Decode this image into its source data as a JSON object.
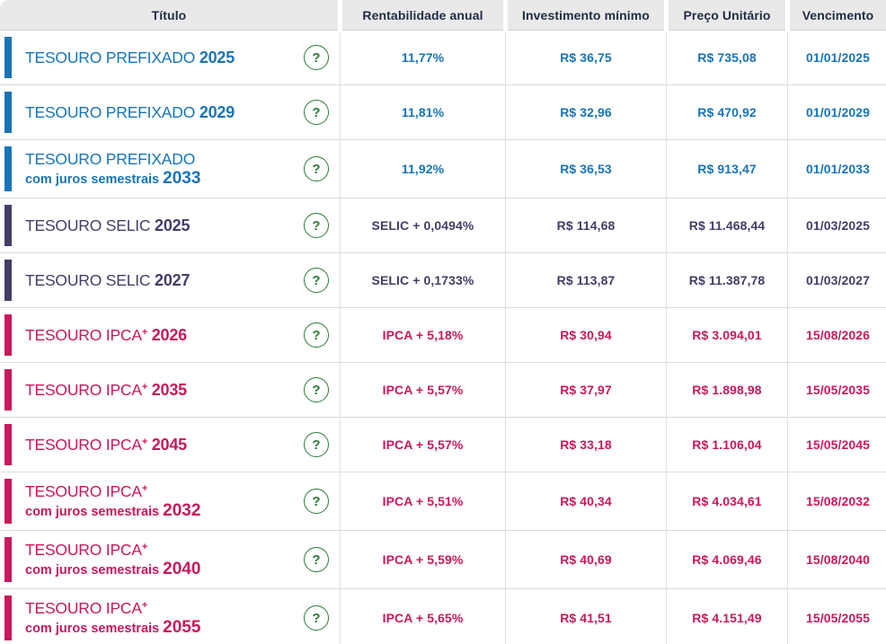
{
  "table": {
    "columns": [
      "Título",
      "Rentabilidade anual",
      "Investimento mínimo",
      "Preço Unitário",
      "Vencimento"
    ],
    "help_label": "?",
    "colors": {
      "blue": "#1874b8",
      "purple": "#453c68",
      "magenta": "#c9185c",
      "help_green": "#2c7c37",
      "header_text": "#232c47",
      "header_bg": "#e9e9e9"
    },
    "rows": [
      {
        "name": "TESOURO PREFIXADO",
        "sup": "",
        "juros": "",
        "year": "2025",
        "theme": "blue",
        "rate": "11,77%",
        "min_investment": "R$ 36,75",
        "unit_price": "R$ 735,08",
        "maturity": "01/01/2025"
      },
      {
        "name": "TESOURO PREFIXADO",
        "sup": "",
        "juros": "",
        "year": "2029",
        "theme": "blue",
        "rate": "11,81%",
        "min_investment": "R$ 32,96",
        "unit_price": "R$ 470,92",
        "maturity": "01/01/2029"
      },
      {
        "name": "TESOURO PREFIXADO",
        "sup": "",
        "juros": "com juros semestrais",
        "year": "2033",
        "theme": "blue",
        "rate": "11,92%",
        "min_investment": "R$ 36,53",
        "unit_price": "R$ 913,47",
        "maturity": "01/01/2033"
      },
      {
        "name": "TESOURO SELIC",
        "sup": "",
        "juros": "",
        "year": "2025",
        "theme": "purple",
        "rate": "SELIC + 0,0494%",
        "min_investment": "R$ 114,68",
        "unit_price": "R$ 11.468,44",
        "maturity": "01/03/2025"
      },
      {
        "name": "TESOURO SELIC",
        "sup": "",
        "juros": "",
        "year": "2027",
        "theme": "purple",
        "rate": "SELIC + 0,1733%",
        "min_investment": "R$ 113,87",
        "unit_price": "R$ 11.387,78",
        "maturity": "01/03/2027"
      },
      {
        "name": "TESOURO IPCA",
        "sup": "+",
        "juros": "",
        "year": "2026",
        "theme": "magenta",
        "rate": "IPCA + 5,18%",
        "min_investment": "R$ 30,94",
        "unit_price": "R$ 3.094,01",
        "maturity": "15/08/2026"
      },
      {
        "name": "TESOURO IPCA",
        "sup": "+",
        "juros": "",
        "year": "2035",
        "theme": "magenta",
        "rate": "IPCA + 5,57%",
        "min_investment": "R$ 37,97",
        "unit_price": "R$ 1.898,98",
        "maturity": "15/05/2035"
      },
      {
        "name": "TESOURO IPCA",
        "sup": "+",
        "juros": "",
        "year": "2045",
        "theme": "magenta",
        "rate": "IPCA + 5,57%",
        "min_investment": "R$ 33,18",
        "unit_price": "R$ 1.106,04",
        "maturity": "15/05/2045"
      },
      {
        "name": "TESOURO IPCA",
        "sup": "+",
        "juros": "com juros semestrais",
        "year": "2032",
        "theme": "magenta",
        "rate": "IPCA + 5,51%",
        "min_investment": "R$ 40,34",
        "unit_price": "R$ 4.034,61",
        "maturity": "15/08/2032"
      },
      {
        "name": "TESOURO IPCA",
        "sup": "+",
        "juros": "com juros semestrais",
        "year": "2040",
        "theme": "magenta",
        "rate": "IPCA + 5,59%",
        "min_investment": "R$ 40,69",
        "unit_price": "R$ 4.069,46",
        "maturity": "15/08/2040"
      },
      {
        "name": "TESOURO IPCA",
        "sup": "+",
        "juros": "com juros semestrais",
        "year": "2055",
        "theme": "magenta",
        "rate": "IPCA + 5,65%",
        "min_investment": "R$ 41,51",
        "unit_price": "R$ 4.151,49",
        "maturity": "15/05/2055"
      }
    ]
  }
}
